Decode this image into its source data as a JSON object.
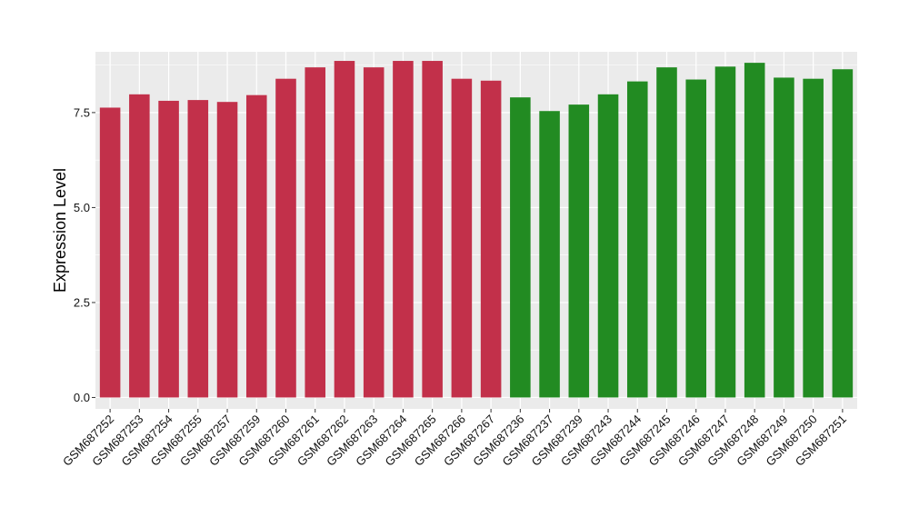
{
  "chart_data": {
    "type": "bar",
    "ylabel": "Expression Level",
    "xlabel": "",
    "ylim": [
      -0.3,
      9.1
    ],
    "yticks": [
      0.0,
      2.5,
      5.0,
      7.5
    ],
    "ytick_labels": [
      "0.0",
      "2.5",
      "5.0",
      "7.5"
    ],
    "grid": true,
    "panel_background": "#ebebeb",
    "grid_color": "#ffffff",
    "categories": [
      "GSM687252",
      "GSM687253",
      "GSM687254",
      "GSM687255",
      "GSM687257",
      "GSM687259",
      "GSM687260",
      "GSM687261",
      "GSM687262",
      "GSM687263",
      "GSM687264",
      "GSM687265",
      "GSM687266",
      "GSM687267",
      "GSM687236",
      "GSM687237",
      "GSM687239",
      "GSM687243",
      "GSM687244",
      "GSM687245",
      "GSM687246",
      "GSM687247",
      "GSM687248",
      "GSM687249",
      "GSM687250",
      "GSM687251"
    ],
    "values": [
      7.63,
      7.98,
      7.81,
      7.83,
      7.78,
      7.96,
      8.39,
      8.69,
      8.86,
      8.69,
      8.86,
      8.86,
      8.39,
      8.34,
      7.9,
      7.54,
      7.71,
      7.98,
      8.32,
      8.69,
      8.37,
      8.71,
      8.81,
      8.42,
      8.39,
      8.64
    ],
    "bar_colors": [
      "#c2304a",
      "#c2304a",
      "#c2304a",
      "#c2304a",
      "#c2304a",
      "#c2304a",
      "#c2304a",
      "#c2304a",
      "#c2304a",
      "#c2304a",
      "#c2304a",
      "#c2304a",
      "#c2304a",
      "#c2304a",
      "#228b22",
      "#228b22",
      "#228b22",
      "#228b22",
      "#228b22",
      "#228b22",
      "#228b22",
      "#228b22",
      "#228b22",
      "#228b22",
      "#228b22",
      "#228b22"
    ]
  }
}
